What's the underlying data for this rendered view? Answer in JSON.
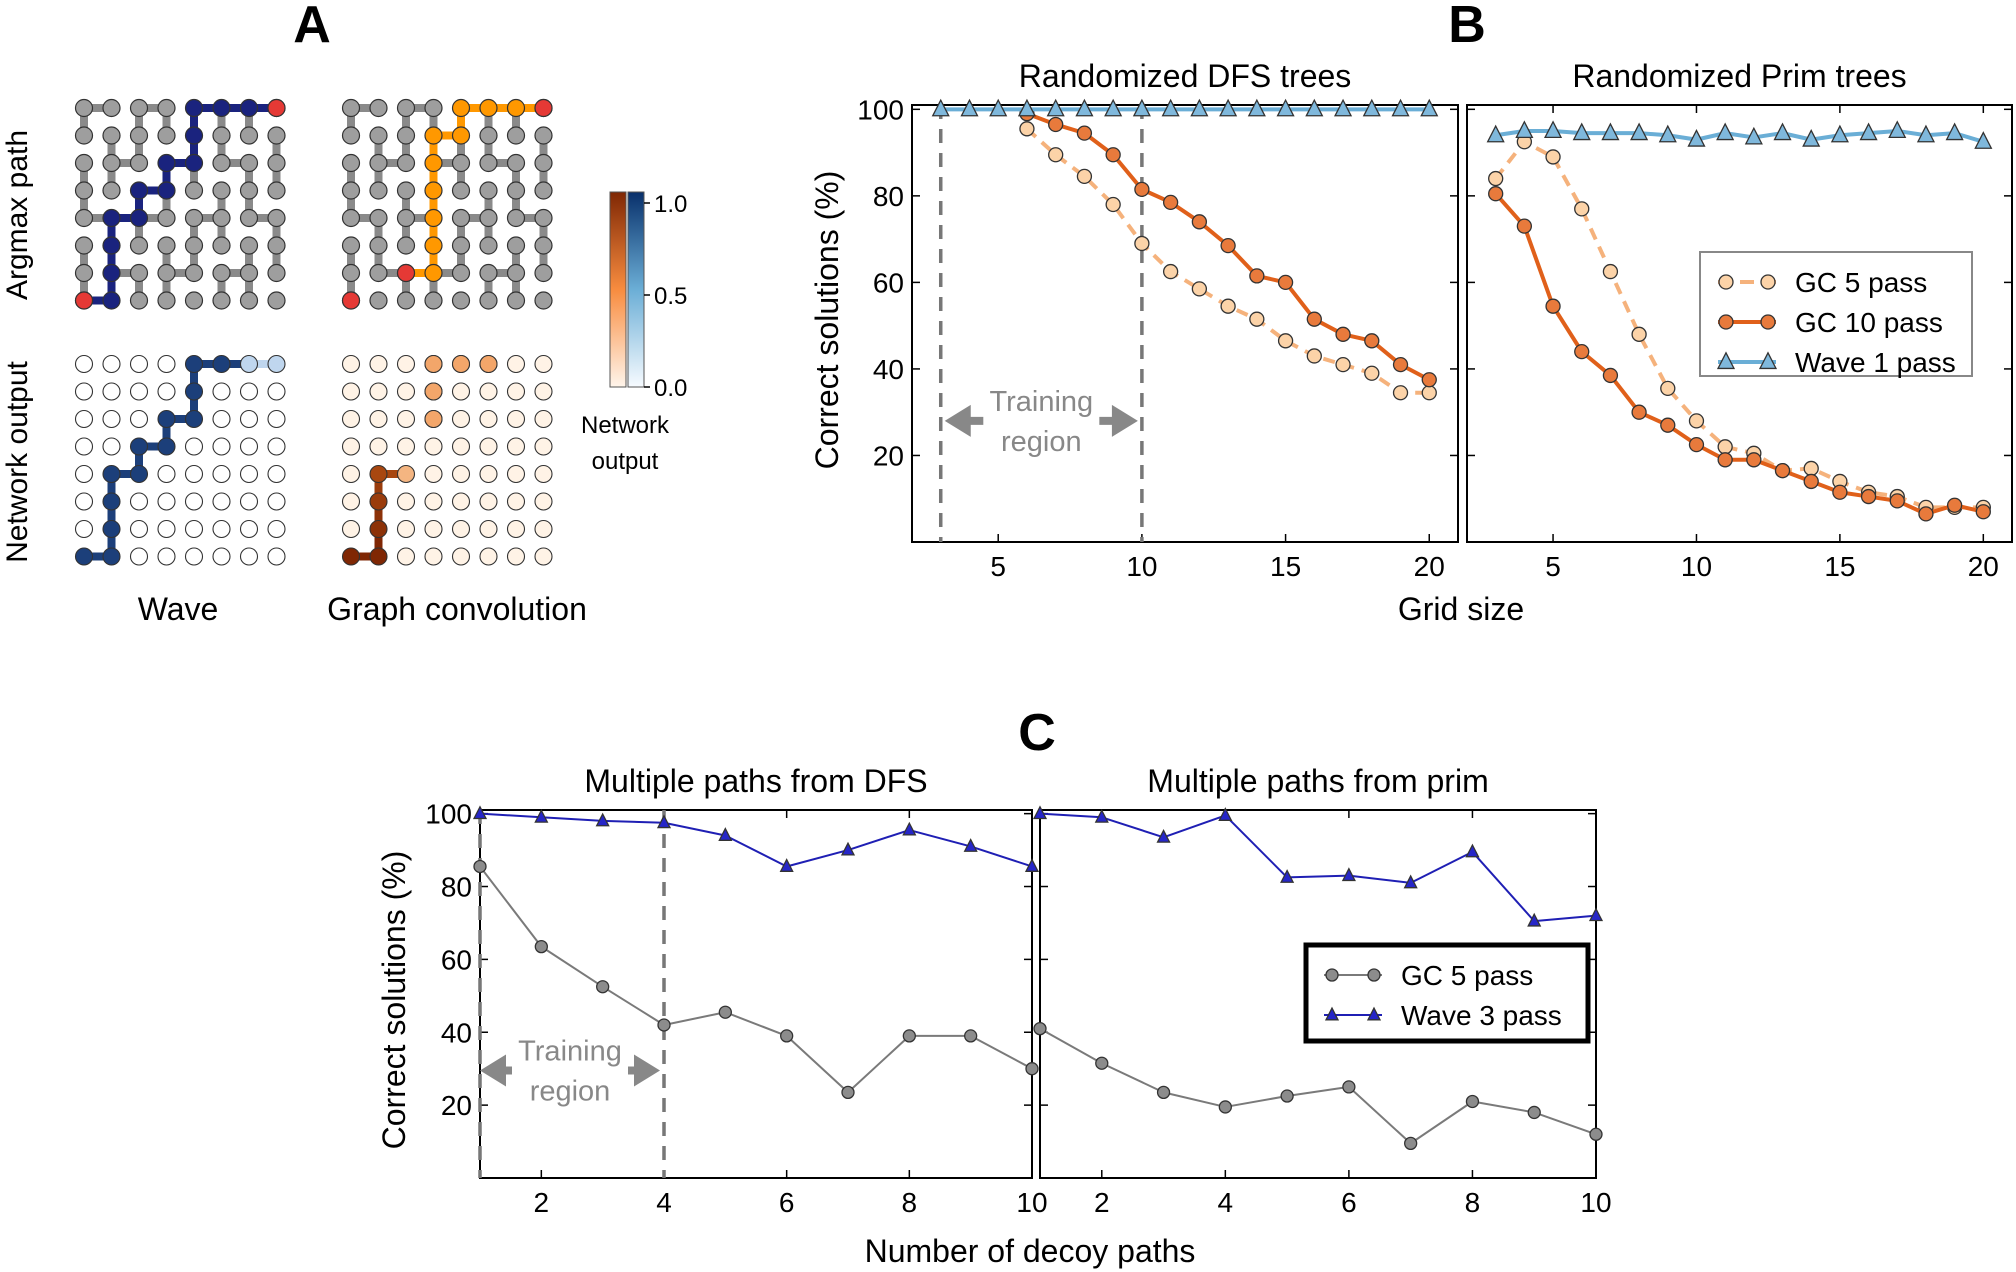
{
  "panel_letters": {
    "a": "A",
    "b": "B",
    "c": "C"
  },
  "panel_a": {
    "row_labels": {
      "top": "Argmax path",
      "bottom": "Network output"
    },
    "col_labels": {
      "left": "Wave",
      "right": "Graph convolution"
    },
    "colorbar": {
      "ticks": [
        "1.0",
        "0.5",
        "0.0"
      ],
      "label_lines": [
        "Network",
        "output"
      ]
    },
    "colors": {
      "wave": "#1a237e",
      "gc": "#ff9800",
      "node": "#9e9e9e",
      "endpoint": "#e53935"
    }
  },
  "chart_data": [
    {
      "type": "line",
      "panel": "B-left",
      "title": "Randomized DFS trees",
      "xlabel": "Grid size",
      "ylabel": "Correct solutions  (%)",
      "xlim": [
        2,
        21
      ],
      "ylim": [
        0,
        101
      ],
      "xticks": [
        5,
        10,
        15,
        20
      ],
      "yticks": [
        20,
        40,
        60,
        80,
        100
      ],
      "grid": false,
      "annotation": {
        "text_lines": [
          "Training",
          "region"
        ],
        "x_range": [
          3,
          10
        ]
      },
      "series": [
        {
          "name": "GC 5 pass",
          "x": [
            6,
            7,
            8,
            9,
            10,
            11,
            12,
            13,
            14,
            15,
            16,
            17,
            18,
            19,
            20
          ],
          "values": [
            95.5,
            89.5,
            84.5,
            78,
            69,
            62.5,
            58.5,
            54.5,
            51.5,
            46.5,
            43,
            41,
            39,
            34.5,
            34.5
          ]
        },
        {
          "name": "GC 10 pass",
          "x": [
            6,
            7,
            8,
            9,
            10,
            11,
            12,
            13,
            14,
            15,
            16,
            17,
            18,
            19,
            20
          ],
          "values": [
            99,
            96.5,
            94.5,
            89.5,
            81.5,
            78.5,
            74,
            68.5,
            61.5,
            60,
            51.5,
            48,
            46.5,
            41,
            37.5
          ]
        },
        {
          "name": "Wave 1 pass",
          "x": [
            3,
            4,
            5,
            6,
            7,
            8,
            9,
            10,
            11,
            12,
            13,
            14,
            15,
            16,
            17,
            18,
            19,
            20
          ],
          "values": [
            100,
            100,
            100,
            100,
            100,
            100,
            100,
            100,
            100,
            100,
            100,
            100,
            100,
            100,
            100,
            100,
            100,
            100
          ]
        }
      ]
    },
    {
      "type": "line",
      "panel": "B-right",
      "title": "Randomized Prim trees",
      "xlabel": "Grid size",
      "xlim": [
        2,
        21
      ],
      "ylim": [
        0,
        101
      ],
      "xticks": [
        5,
        10,
        15,
        20
      ],
      "grid": false,
      "legend": {
        "placement": "center-right",
        "entries": [
          "GC 5 pass",
          "GC 10 pass",
          "Wave 1 pass"
        ]
      },
      "series": [
        {
          "name": "GC 5 pass",
          "x": [
            3,
            4,
            5,
            6,
            7,
            8,
            9,
            10,
            11,
            12,
            13,
            14,
            15,
            16,
            17,
            18,
            19,
            20
          ],
          "values": [
            84,
            92.5,
            89,
            77,
            62.5,
            48,
            35.5,
            28,
            22,
            20.5,
            16.5,
            17,
            14,
            11.5,
            10.5,
            8,
            8,
            8
          ]
        },
        {
          "name": "GC 10 pass",
          "x": [
            3,
            4,
            5,
            6,
            7,
            8,
            9,
            10,
            11,
            12,
            13,
            14,
            15,
            16,
            17,
            18,
            19,
            20
          ],
          "values": [
            80.5,
            73,
            54.5,
            44,
            38.5,
            30,
            27,
            22.5,
            19,
            19,
            16.5,
            14,
            11.5,
            10.5,
            9.5,
            6.5,
            8.5,
            7
          ]
        },
        {
          "name": "Wave 1 pass",
          "x": [
            3,
            4,
            5,
            6,
            7,
            8,
            9,
            10,
            11,
            12,
            13,
            14,
            15,
            16,
            17,
            18,
            19,
            20
          ],
          "values": [
            94,
            95,
            95,
            94.5,
            94.5,
            94.5,
            94,
            93,
            94.5,
            93.5,
            94.5,
            93,
            94,
            94.5,
            95,
            94,
            94.5,
            92.5
          ]
        }
      ]
    },
    {
      "type": "line",
      "panel": "C-left",
      "title": "Multiple paths from DFS",
      "xlabel": "Number of decoy paths",
      "ylabel": "Correct solutions  (%)",
      "xlim": [
        1,
        10
      ],
      "ylim": [
        0,
        101
      ],
      "xticks": [
        2,
        4,
        6,
        8,
        10
      ],
      "yticks": [
        20,
        40,
        60,
        80,
        100
      ],
      "grid": false,
      "annotation": {
        "text_lines": [
          "Training",
          "region"
        ],
        "x_range": [
          1,
          4
        ]
      },
      "series": [
        {
          "name": "GC 5 pass",
          "x": [
            1,
            2,
            3,
            4,
            5,
            6,
            7,
            8,
            9,
            10
          ],
          "values": [
            85.5,
            63.5,
            52.5,
            42,
            45.5,
            39,
            23.5,
            39,
            39,
            30
          ]
        },
        {
          "name": "Wave 3 pass",
          "x": [
            1,
            2,
            3,
            4,
            5,
            6,
            7,
            8,
            9,
            10
          ],
          "values": [
            100,
            99,
            98,
            97.5,
            94,
            85.5,
            90,
            95.5,
            91,
            85.5
          ]
        }
      ]
    },
    {
      "type": "line",
      "panel": "C-right",
      "title": "Multiple paths from prim",
      "xlim": [
        1,
        10
      ],
      "ylim": [
        0,
        101
      ],
      "xticks": [
        2,
        4,
        6,
        8,
        10
      ],
      "grid": false,
      "legend": {
        "placement": "center-right",
        "entries": [
          "GC 5 pass",
          "Wave 3 pass"
        ]
      },
      "series": [
        {
          "name": "GC 5 pass",
          "x": [
            1,
            2,
            3,
            4,
            5,
            6,
            7,
            8,
            9,
            10
          ],
          "values": [
            41,
            31.5,
            23.5,
            19.5,
            22.5,
            25,
            9.5,
            21,
            18,
            12
          ]
        },
        {
          "name": "Wave 3 pass",
          "x": [
            1,
            2,
            3,
            4,
            5,
            6,
            7,
            8,
            9,
            10
          ],
          "values": [
            100,
            99,
            93.5,
            99.5,
            82.5,
            83,
            81,
            89.5,
            70.5,
            72
          ]
        }
      ]
    }
  ]
}
